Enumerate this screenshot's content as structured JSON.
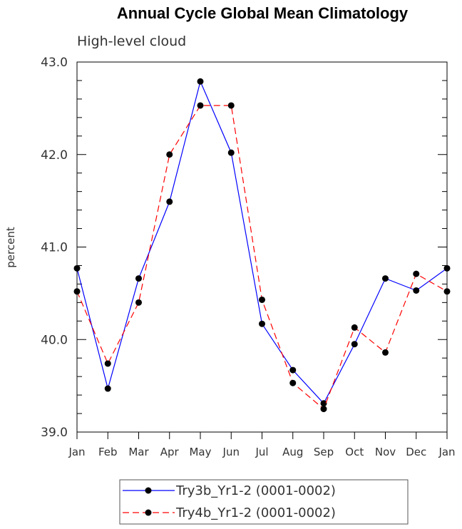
{
  "chart_data": {
    "type": "line",
    "title": "Annual Cycle Global Mean Climatology",
    "subtitle": "High-level cloud",
    "xlabel": "",
    "ylabel": "percent",
    "categories": [
      "Jan",
      "Feb",
      "Mar",
      "Apr",
      "May",
      "Jun",
      "Jul",
      "Aug",
      "Sep",
      "Oct",
      "Nov",
      "Dec",
      "Jan"
    ],
    "ylim": [
      39.0,
      43.0
    ],
    "yticks": [
      "39.0",
      "40.0",
      "41.0",
      "42.0",
      "43.0"
    ],
    "grid": false,
    "legend_position": "bottom",
    "series": [
      {
        "name": "Try3b_Yr1-2 (0001-0002)",
        "color": "#0000ff",
        "style": "solid",
        "values": [
          40.77,
          39.47,
          40.66,
          41.49,
          42.79,
          42.02,
          40.17,
          39.67,
          39.31,
          39.95,
          40.66,
          40.53,
          40.77
        ]
      },
      {
        "name": "Try4b_Yr1-2 (0001-0002)",
        "color": "#ff0000",
        "style": "dashed",
        "values": [
          40.52,
          39.74,
          40.4,
          42.0,
          42.53,
          42.53,
          40.43,
          39.53,
          39.25,
          40.13,
          39.86,
          40.71,
          40.52
        ]
      }
    ]
  }
}
